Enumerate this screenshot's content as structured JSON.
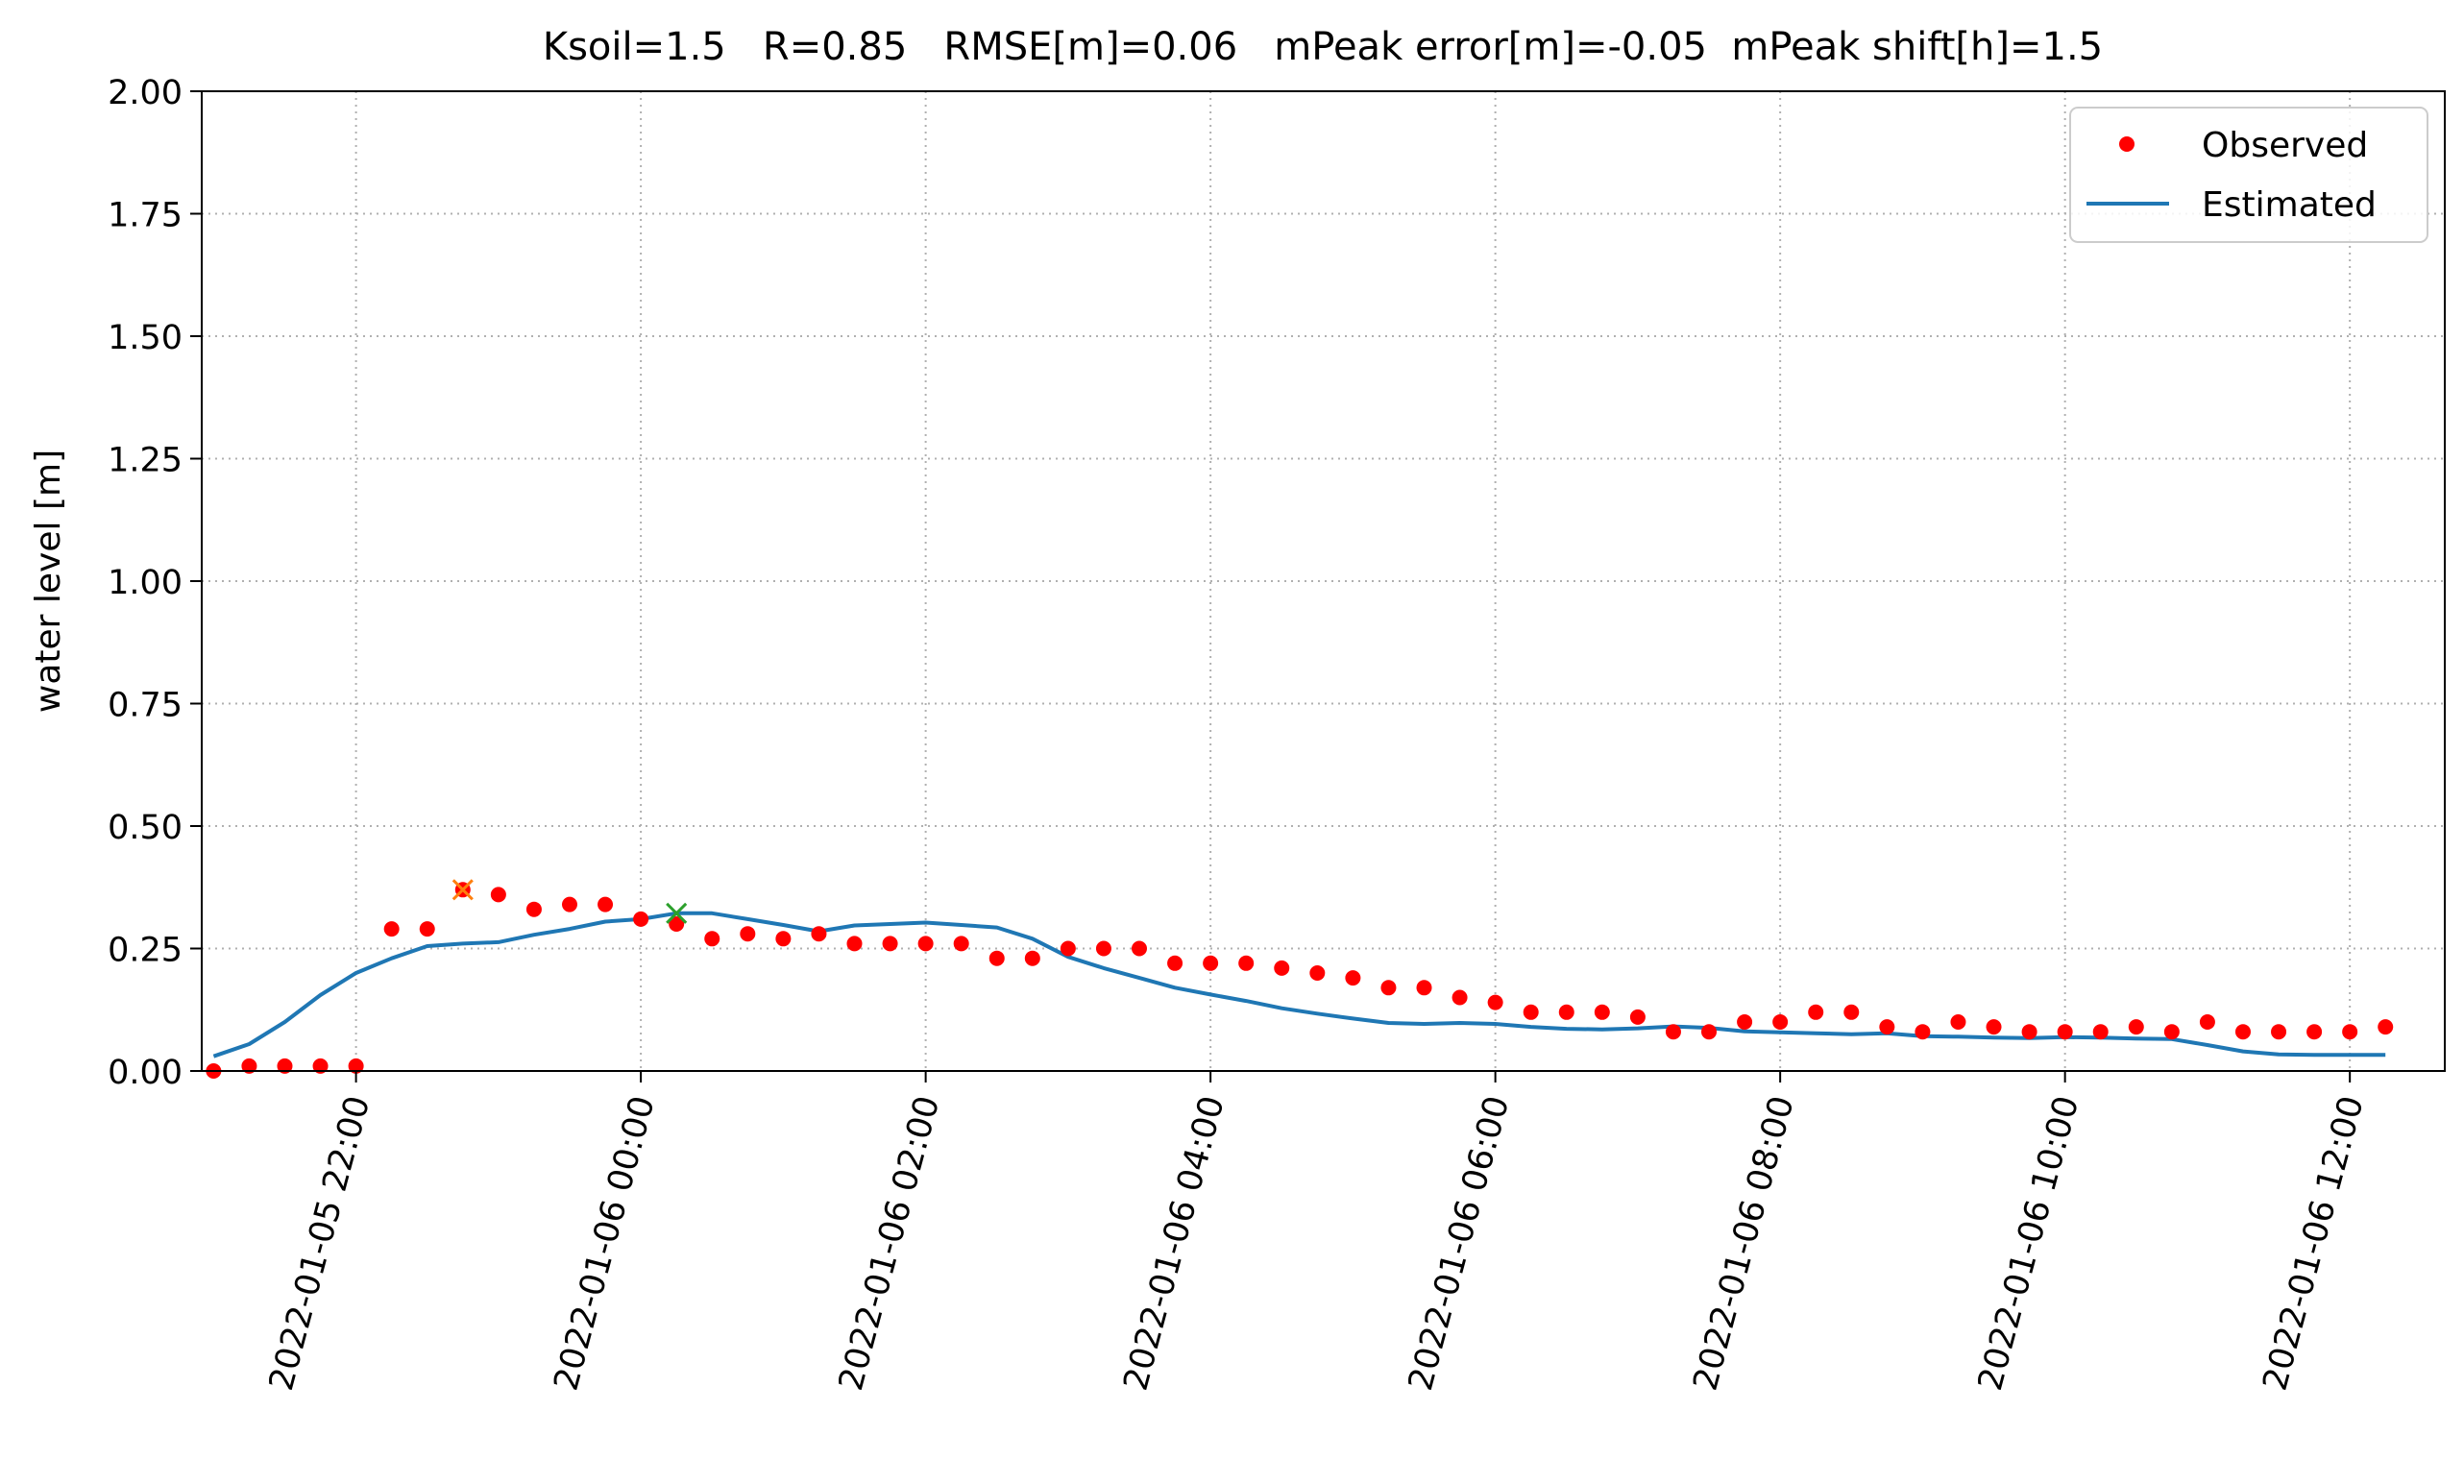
{
  "chart_data": {
    "type": "line",
    "title": "Ksoil=1.5   R=0.85   RMSE[m]=0.06   mPeak error[m]=-0.05  mPeak shift[h]=1.5",
    "xlabel": "",
    "ylabel": "water level [m]",
    "xlim": [
      "2022-01-05 20:55",
      "2022-01-06 12:40"
    ],
    "ylim": [
      0,
      2
    ],
    "yticks": [
      "0.00",
      "0.25",
      "0.50",
      "0.75",
      "1.00",
      "1.25",
      "1.50",
      "1.75",
      "2.00"
    ],
    "xticks": [
      {
        "t": "2022-01-05 22:00",
        "label": "2022-01-05 22:00"
      },
      {
        "t": "2022-01-06 00:00",
        "label": "2022-01-06 00:00"
      },
      {
        "t": "2022-01-06 02:00",
        "label": "2022-01-06 02:00"
      },
      {
        "t": "2022-01-06 04:00",
        "label": "2022-01-06 04:00"
      },
      {
        "t": "2022-01-06 06:00",
        "label": "2022-01-06 06:00"
      },
      {
        "t": "2022-01-06 08:00",
        "label": "2022-01-06 08:00"
      },
      {
        "t": "2022-01-06 10:00",
        "label": "2022-01-06 10:00"
      },
      {
        "t": "2022-01-06 12:00",
        "label": "2022-01-06 12:00"
      }
    ],
    "grid": true,
    "legend_position": "top-right",
    "series": [
      {
        "name": "Observed",
        "style": "points",
        "color": "#ff0000",
        "x": [
          "2022-01-05 21:00",
          "2022-01-05 21:15",
          "2022-01-05 21:30",
          "2022-01-05 21:45",
          "2022-01-05 22:00",
          "2022-01-05 22:15",
          "2022-01-05 22:30",
          "2022-01-05 22:45",
          "2022-01-05 23:00",
          "2022-01-05 23:15",
          "2022-01-05 23:30",
          "2022-01-05 23:45",
          "2022-01-06 00:00",
          "2022-01-06 00:15",
          "2022-01-06 00:30",
          "2022-01-06 00:45",
          "2022-01-06 01:00",
          "2022-01-06 01:15",
          "2022-01-06 01:30",
          "2022-01-06 01:45",
          "2022-01-06 02:00",
          "2022-01-06 02:15",
          "2022-01-06 02:30",
          "2022-01-06 02:45",
          "2022-01-06 03:00",
          "2022-01-06 03:15",
          "2022-01-06 03:30",
          "2022-01-06 03:45",
          "2022-01-06 04:00",
          "2022-01-06 04:15",
          "2022-01-06 04:30",
          "2022-01-06 04:45",
          "2022-01-06 05:00",
          "2022-01-06 05:15",
          "2022-01-06 05:30",
          "2022-01-06 05:45",
          "2022-01-06 06:00",
          "2022-01-06 06:15",
          "2022-01-06 06:30",
          "2022-01-06 06:45",
          "2022-01-06 07:00",
          "2022-01-06 07:15",
          "2022-01-06 07:30",
          "2022-01-06 07:45",
          "2022-01-06 08:00",
          "2022-01-06 08:15",
          "2022-01-06 08:30",
          "2022-01-06 08:45",
          "2022-01-06 09:00",
          "2022-01-06 09:15",
          "2022-01-06 09:30",
          "2022-01-06 09:45",
          "2022-01-06 10:00",
          "2022-01-06 10:15",
          "2022-01-06 10:30",
          "2022-01-06 10:45",
          "2022-01-06 11:00",
          "2022-01-06 11:15",
          "2022-01-06 11:30",
          "2022-01-06 11:45",
          "2022-01-06 12:00",
          "2022-01-06 12:15"
        ],
        "y": [
          0.0,
          0.01,
          0.01,
          0.01,
          0.01,
          0.29,
          0.29,
          0.37,
          0.36,
          0.33,
          0.34,
          0.34,
          0.31,
          0.3,
          0.27,
          0.28,
          0.27,
          0.28,
          0.26,
          0.26,
          0.26,
          0.26,
          0.23,
          0.23,
          0.25,
          0.25,
          0.25,
          0.22,
          0.22,
          0.22,
          0.21,
          0.2,
          0.19,
          0.17,
          0.17,
          0.15,
          0.14,
          0.12,
          0.12,
          0.12,
          0.11,
          0.08,
          0.08,
          0.1,
          0.1,
          0.12,
          0.12,
          0.09,
          0.08,
          0.1,
          0.09,
          0.08,
          0.08,
          0.08,
          0.09,
          0.08,
          0.1,
          0.08,
          0.08,
          0.08,
          0.08,
          0.09
        ]
      },
      {
        "name": "Estimated",
        "style": "line",
        "color": "#1f77b4",
        "x": [
          "2022-01-05 21:00",
          "2022-01-05 21:15",
          "2022-01-05 21:30",
          "2022-01-05 21:45",
          "2022-01-05 22:00",
          "2022-01-05 22:15",
          "2022-01-05 22:30",
          "2022-01-05 22:45",
          "2022-01-05 23:00",
          "2022-01-05 23:15",
          "2022-01-05 23:30",
          "2022-01-05 23:45",
          "2022-01-06 00:00",
          "2022-01-06 00:15",
          "2022-01-06 00:30",
          "2022-01-06 00:45",
          "2022-01-06 01:00",
          "2022-01-06 01:15",
          "2022-01-06 01:30",
          "2022-01-06 01:45",
          "2022-01-06 02:00",
          "2022-01-06 02:15",
          "2022-01-06 02:30",
          "2022-01-06 02:45",
          "2022-01-06 03:00",
          "2022-01-06 03:15",
          "2022-01-06 03:30",
          "2022-01-06 03:45",
          "2022-01-06 04:00",
          "2022-01-06 04:15",
          "2022-01-06 04:30",
          "2022-01-06 04:45",
          "2022-01-06 05:00",
          "2022-01-06 05:15",
          "2022-01-06 05:30",
          "2022-01-06 05:45",
          "2022-01-06 06:00",
          "2022-01-06 06:15",
          "2022-01-06 06:30",
          "2022-01-06 06:45",
          "2022-01-06 07:00",
          "2022-01-06 07:15",
          "2022-01-06 07:30",
          "2022-01-06 07:45",
          "2022-01-06 08:00",
          "2022-01-06 08:15",
          "2022-01-06 08:30",
          "2022-01-06 08:45",
          "2022-01-06 09:00",
          "2022-01-06 09:15",
          "2022-01-06 09:30",
          "2022-01-06 09:45",
          "2022-01-06 10:00",
          "2022-01-06 10:15",
          "2022-01-06 10:30",
          "2022-01-06 10:45",
          "2022-01-06 11:00",
          "2022-01-06 11:15",
          "2022-01-06 11:30",
          "2022-01-06 11:45",
          "2022-01-06 12:00",
          "2022-01-06 12:15"
        ],
        "y": [
          0.03,
          0.055,
          0.1,
          0.155,
          0.2,
          0.23,
          0.255,
          0.26,
          0.263,
          0.278,
          0.29,
          0.305,
          0.31,
          0.322,
          0.322,
          0.31,
          0.298,
          0.285,
          0.297,
          0.3,
          0.303,
          0.298,
          0.293,
          0.27,
          0.233,
          0.21,
          0.19,
          0.17,
          0.156,
          0.143,
          0.128,
          0.117,
          0.107,
          0.098,
          0.096,
          0.098,
          0.096,
          0.09,
          0.086,
          0.085,
          0.087,
          0.091,
          0.088,
          0.081,
          0.079,
          0.077,
          0.075,
          0.077,
          0.071,
          0.07,
          0.068,
          0.067,
          0.069,
          0.068,
          0.066,
          0.065,
          0.053,
          0.04,
          0.034,
          0.033,
          0.033,
          0.033
        ]
      }
    ],
    "peak_markers": [
      {
        "label": "Observed peak",
        "t": "2022-01-05 22:45",
        "y": 0.37,
        "color": "#ff7f0e",
        "marker": "x"
      },
      {
        "label": "Estimated peak",
        "t": "2022-01-06 00:15",
        "y": 0.322,
        "color": "#2ca02c",
        "marker": "x"
      }
    ]
  }
}
